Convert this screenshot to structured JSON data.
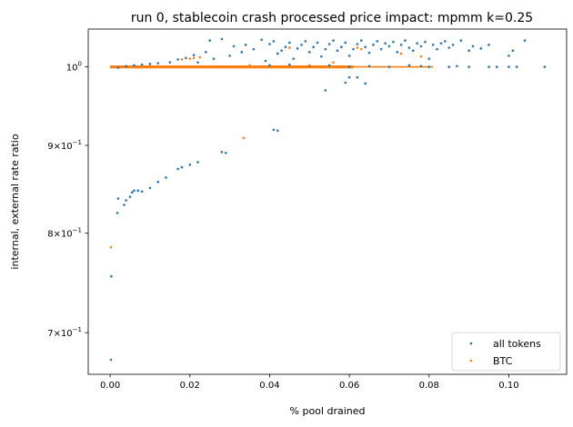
{
  "chart_data": {
    "type": "scatter",
    "title": "run 0, stablecoin crash processed price impact: mpmm k=0.25",
    "xlabel": "% pool drained",
    "ylabel": "internal, external rate ratio",
    "xscale": "linear",
    "yscale": "log",
    "xlim": [
      -0.0055,
      0.1145
    ],
    "ylim": [
      0.662,
      1.052
    ],
    "xticks": [
      0.0,
      0.02,
      0.04,
      0.06,
      0.08,
      0.1
    ],
    "xtick_labels": [
      "0.00",
      "0.02",
      "0.04",
      "0.06",
      "0.08",
      "0.10"
    ],
    "yticks": [
      {
        "value": 1.0,
        "base": "10",
        "exp": "0"
      },
      {
        "value": 0.9,
        "base": "9×10",
        "exp": "−1"
      },
      {
        "value": 0.8,
        "base": "8×10",
        "exp": "−1"
      },
      {
        "value": 0.7,
        "base": "7×10",
        "exp": "−1"
      }
    ],
    "legend_position": "lower-right",
    "series": [
      {
        "name": "all tokens",
        "color": "#1f77b4",
        "points": [
          [
            0.0002,
            0.675
          ],
          [
            0.0003,
            0.755
          ],
          [
            0.0018,
            0.822
          ],
          [
            0.002,
            0.838
          ],
          [
            0.0035,
            0.831
          ],
          [
            0.004,
            0.836
          ],
          [
            0.005,
            0.84
          ],
          [
            0.0055,
            0.845
          ],
          [
            0.006,
            0.847
          ],
          [
            0.007,
            0.847
          ],
          [
            0.008,
            0.846
          ],
          [
            0.01,
            0.85
          ],
          [
            0.012,
            0.857
          ],
          [
            0.014,
            0.862
          ],
          [
            0.017,
            0.872
          ],
          [
            0.018,
            0.874
          ],
          [
            0.02,
            0.877
          ],
          [
            0.022,
            0.88
          ],
          [
            0.028,
            0.892
          ],
          [
            0.029,
            0.891
          ],
          [
            0.041,
            0.919
          ],
          [
            0.042,
            0.918
          ],
          [
            0.054,
            0.969
          ],
          [
            0.059,
            0.979
          ],
          [
            0.06,
            0.986
          ],
          [
            0.062,
            0.986
          ],
          [
            0.064,
            0.978
          ],
          [
            0.002,
            0.999
          ],
          [
            0.004,
            1.001
          ],
          [
            0.006,
            1.002
          ],
          [
            0.008,
            1.003
          ],
          [
            0.01,
            1.004
          ],
          [
            0.012,
            1.005
          ],
          [
            0.015,
            1.006
          ],
          [
            0.017,
            1.01
          ],
          [
            0.019,
            1.012
          ],
          [
            0.021,
            1.016
          ],
          [
            0.024,
            1.02
          ],
          [
            0.025,
            1.036
          ],
          [
            0.028,
            1.038
          ],
          [
            0.022,
            1.006
          ],
          [
            0.026,
            1.011
          ],
          [
            0.03,
            1.015
          ],
          [
            0.031,
            1.028
          ],
          [
            0.033,
            1.02
          ],
          [
            0.034,
            1.03
          ],
          [
            0.036,
            1.024
          ],
          [
            0.038,
            1.037
          ],
          [
            0.039,
            1.008
          ],
          [
            0.04,
            1.031
          ],
          [
            0.041,
            1.035
          ],
          [
            0.042,
            1.018
          ],
          [
            0.043,
            1.022
          ],
          [
            0.044,
            1.027
          ],
          [
            0.045,
            1.033
          ],
          [
            0.046,
            1.011
          ],
          [
            0.047,
            1.025
          ],
          [
            0.048,
            1.03
          ],
          [
            0.049,
            1.035
          ],
          [
            0.05,
            1.02
          ],
          [
            0.051,
            1.027
          ],
          [
            0.052,
            1.033
          ],
          [
            0.053,
            1.014
          ],
          [
            0.054,
            1.024
          ],
          [
            0.055,
            1.031
          ],
          [
            0.056,
            1.036
          ],
          [
            0.057,
            1.022
          ],
          [
            0.058,
            1.027
          ],
          [
            0.059,
            1.033
          ],
          [
            0.06,
            1.015
          ],
          [
            0.061,
            1.024
          ],
          [
            0.062,
            1.031
          ],
          [
            0.063,
            1.036
          ],
          [
            0.064,
            1.027
          ],
          [
            0.065,
            1.019
          ],
          [
            0.066,
            1.03
          ],
          [
            0.067,
            1.035
          ],
          [
            0.068,
            1.024
          ],
          [
            0.069,
            1.032
          ],
          [
            0.07,
            1.028
          ],
          [
            0.071,
            1.034
          ],
          [
            0.072,
            1.02
          ],
          [
            0.073,
            1.03
          ],
          [
            0.074,
            1.036
          ],
          [
            0.075,
            1.026
          ],
          [
            0.076,
            1.022
          ],
          [
            0.077,
            1.032
          ],
          [
            0.078,
            1.028
          ],
          [
            0.079,
            1.034
          ],
          [
            0.08,
            1.011
          ],
          [
            0.081,
            1.03
          ],
          [
            0.082,
            1.024
          ],
          [
            0.083,
            1.032
          ],
          [
            0.084,
            1.035
          ],
          [
            0.085,
            1.026
          ],
          [
            0.086,
            1.03
          ],
          [
            0.088,
            1.036
          ],
          [
            0.09,
            1.022
          ],
          [
            0.091,
            1.028
          ],
          [
            0.093,
            1.025
          ],
          [
            0.095,
            1.03
          ],
          [
            0.1,
            1.015
          ],
          [
            0.101,
            1.022
          ],
          [
            0.104,
            1.036
          ],
          [
            0.06,
            1.0
          ],
          [
            0.07,
            1.0
          ],
          [
            0.08,
            1.0
          ],
          [
            0.085,
            1.0
          ],
          [
            0.09,
            1.0
          ],
          [
            0.095,
            1.0
          ],
          [
            0.097,
            1.0
          ],
          [
            0.1,
            1.0
          ],
          [
            0.102,
            1.0
          ],
          [
            0.109,
            1.0
          ],
          [
            0.04,
            1.002
          ],
          [
            0.045,
            1.003
          ],
          [
            0.05,
            1.001
          ],
          [
            0.055,
            1.002
          ],
          [
            0.065,
            1.001
          ],
          [
            0.075,
            1.002
          ],
          [
            0.078,
            1.001
          ],
          [
            0.087,
            1.001
          ]
        ]
      },
      {
        "name": "BTC",
        "color": "#ff7f0e",
        "points": [
          [
            0.0002,
            0.785
          ],
          [
            0.0335,
            0.909
          ],
          [
            0.018,
            1.01
          ],
          [
            0.02,
            1.011
          ],
          [
            0.021,
            1.012
          ],
          [
            0.0225,
            1.013
          ],
          [
            0.045,
            1.026
          ],
          [
            0.062,
            1.026
          ],
          [
            0.063,
            1.024
          ],
          [
            0.073,
            1.018
          ],
          [
            0.078,
            1.014
          ],
          [
            0.056,
            1.006
          ],
          [
            0.05,
            1.002
          ],
          [
            0.035,
            1.002
          ],
          [
            0.01,
            1.001
          ]
        ]
      }
    ]
  }
}
